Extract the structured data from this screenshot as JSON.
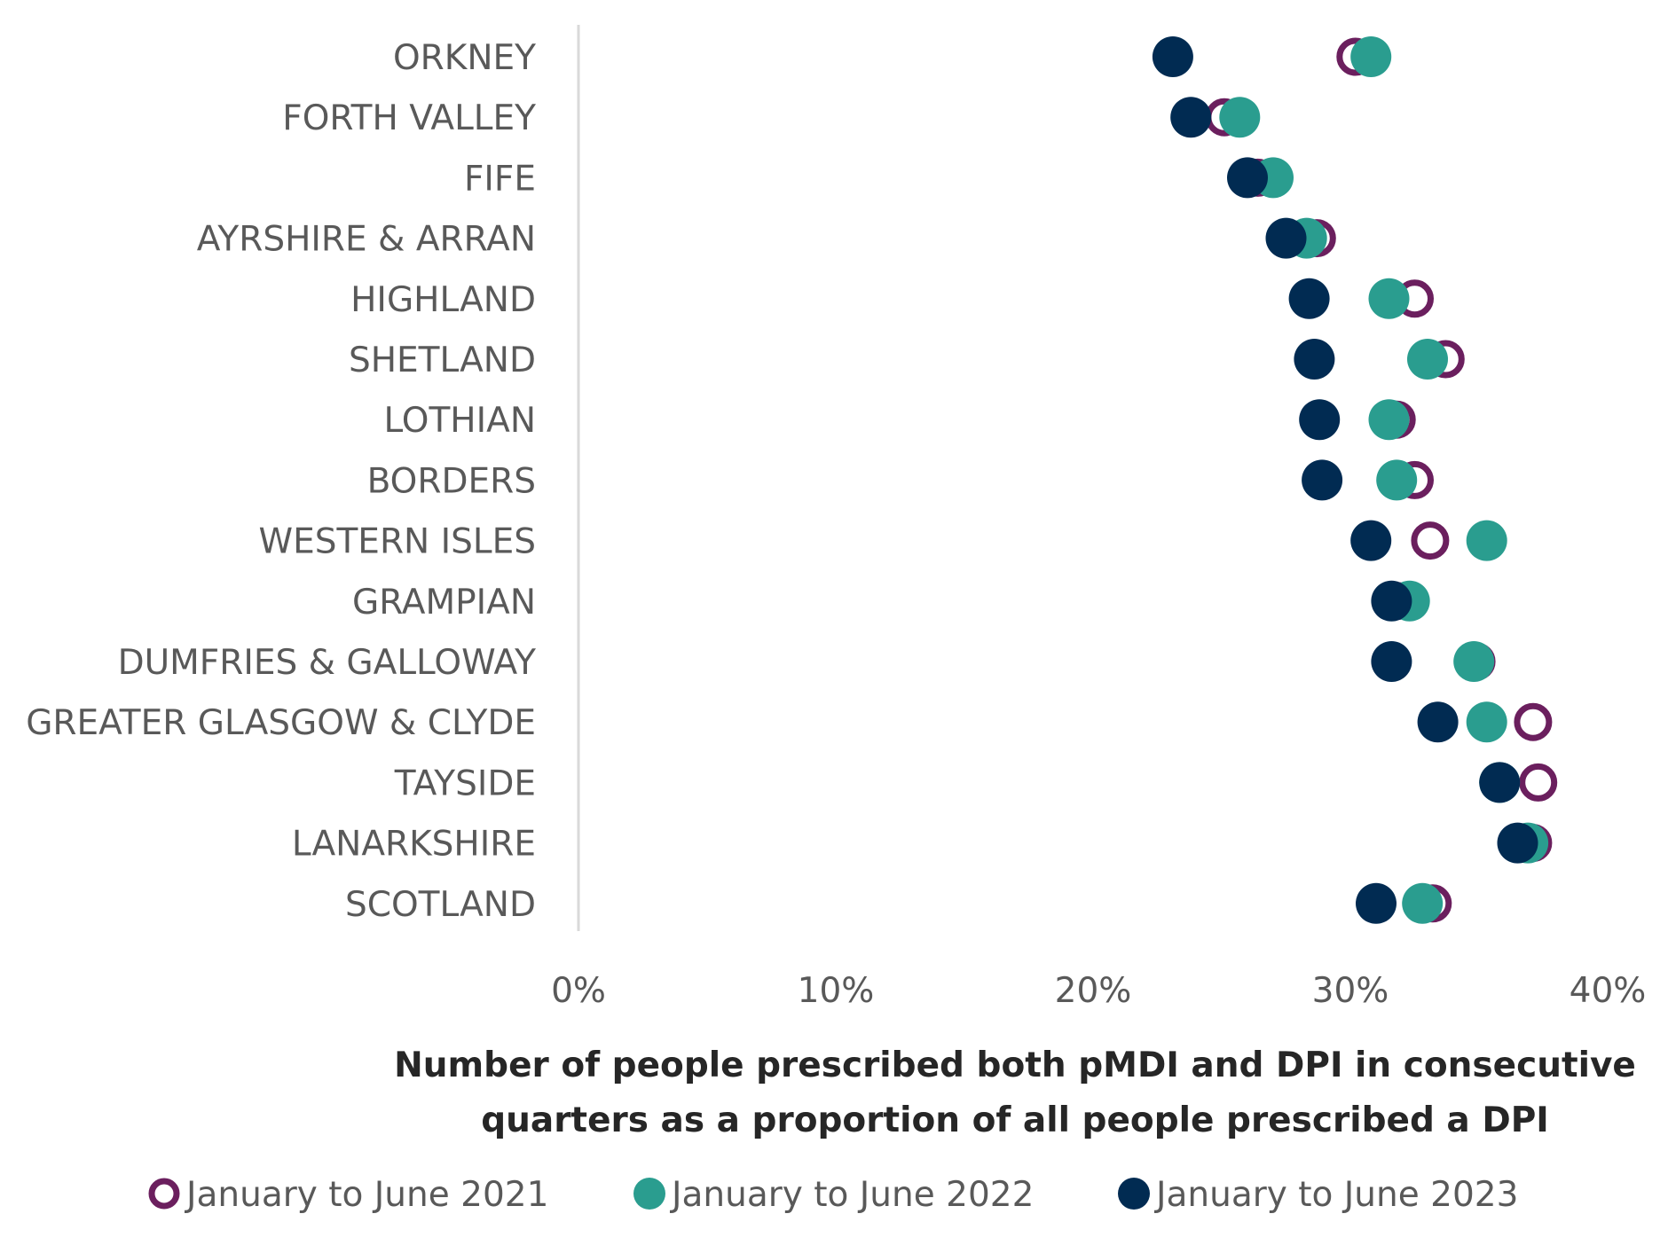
{
  "chart_data": {
    "type": "scatter",
    "orientation": "horizontal-dot-plot",
    "xlabel_lines": [
      "Number of people prescribed both pMDI and DPI in consecutive",
      "quarters as a proportion of all people prescribed a DPI"
    ],
    "xlim": [
      0,
      40
    ],
    "x_ticks": [
      0,
      10,
      20,
      30,
      40
    ],
    "x_tick_labels": [
      "0%",
      "10%",
      "20%",
      "30%",
      "40%"
    ],
    "legend_position": "bottom",
    "categories": [
      "ORKNEY",
      "FORTH VALLEY",
      "FIFE",
      "AYRSHIRE & ARRAN",
      "HIGHLAND",
      "SHETLAND",
      "LOTHIAN",
      "BORDERS",
      "WESTERN ISLES",
      "GRAMPIAN",
      "DUMFRIES & GALLOWAY",
      "GREATER GLASGOW & CLYDE",
      "TAYSIDE",
      "LANARKSHIRE",
      "SCOTLAND"
    ],
    "series": [
      {
        "name": "January to June 2021",
        "style": "hollow",
        "color": "#6b1f5e",
        "values": [
          30.2,
          25.1,
          26.4,
          28.7,
          32.5,
          33.7,
          31.8,
          32.5,
          33.1,
          31.8,
          34.9,
          37.1,
          37.3,
          37.1,
          33.2
        ]
      },
      {
        "name": "January to June 2022",
        "style": "filled",
        "color": "#2a9d8f",
        "values": [
          30.8,
          25.7,
          27.0,
          28.3,
          31.5,
          33.0,
          31.5,
          31.8,
          35.3,
          32.3,
          34.8,
          35.3,
          35.8,
          36.9,
          32.8
        ]
      },
      {
        "name": "January to June 2023",
        "style": "filled",
        "color": "#012b52",
        "values": [
          23.1,
          23.8,
          26.0,
          27.5,
          28.4,
          28.6,
          28.8,
          28.9,
          30.8,
          31.6,
          31.6,
          33.4,
          35.8,
          36.5,
          31.0
        ]
      }
    ]
  }
}
